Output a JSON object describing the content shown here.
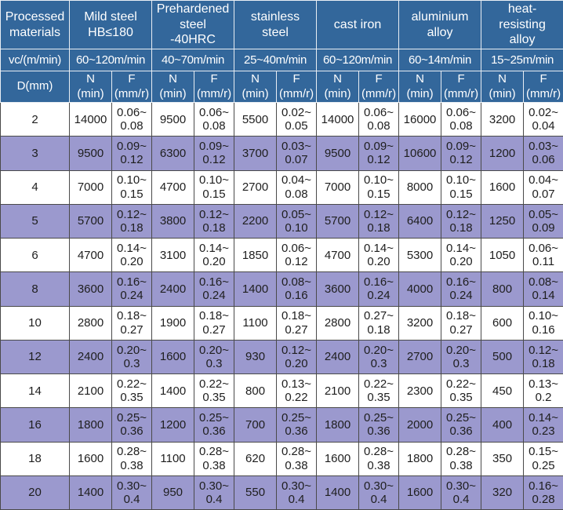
{
  "colors": {
    "header_bg": "#33679B",
    "header_text": "#FFFFFF",
    "row_bg": "#FFFFFF",
    "row_alt_bg": "#9B99CE",
    "data_text": "#1E1E1E",
    "data_border": "#4A4A4A",
    "header_border": "#E9EEF4"
  },
  "table": {
    "corner_label": "Processed\nmaterials",
    "vc_row_label": "vc/(m/min)",
    "d_row_label": "D(mm)",
    "n_header": "N\n(min)",
    "f_header": "F\n(mm/r)",
    "materials": [
      {
        "name": "Mild steel\nHB≤180",
        "vc": "60~120m/min"
      },
      {
        "name": "Prehardened\nsteel\n-40HRC",
        "vc": "40~70m/min"
      },
      {
        "name": "stainless\nsteel",
        "vc": "25~40m/min"
      },
      {
        "name": "cast iron",
        "vc": "60~120m/min"
      },
      {
        "name": "aluminium\nalloy",
        "vc": "60~14m/min"
      },
      {
        "name": "heat-\nresisting\nalloy",
        "vc": "15~25m/min"
      }
    ],
    "rows": [
      {
        "d": "2",
        "values": [
          "14000",
          "0.06~\n0.08",
          "9500",
          "0.06~\n0.08",
          "5500",
          "0.02~\n0.05",
          "14000",
          "0.06~\n0.08",
          "16000",
          "0.06~\n0.08",
          "3200",
          "0.02~\n0.04"
        ]
      },
      {
        "d": "3",
        "values": [
          "9500",
          "0.09~\n0.12",
          "6300",
          "0.09~\n0.12",
          "3700",
          "0.03~\n0.07",
          "9500",
          "0.09~\n0.12",
          "10600",
          "0.09~\n0.12",
          "1200",
          "0.03~\n0.06"
        ]
      },
      {
        "d": "4",
        "values": [
          "7000",
          "0.10~\n0.15",
          "4700",
          "0.10~\n0.15",
          "2700",
          "0.04~\n0.08",
          "7000",
          "0.10~\n0.15",
          "8000",
          "0.10~\n0.15",
          "1600",
          "0.04~\n0.07"
        ]
      },
      {
        "d": "5",
        "values": [
          "5700",
          "0.12~\n0.18",
          "3800",
          "0.12~\n0.18",
          "2200",
          "0.05~\n0.10",
          "5700",
          "0.12~\n0.18",
          "6400",
          "0.12~\n0.18",
          "1250",
          "0.05~\n0.09"
        ]
      },
      {
        "d": "6",
        "values": [
          "4700",
          "0.14~\n0.20",
          "3100",
          "0.14~\n0.20",
          "1850",
          "0.06~\n0.12",
          "4700",
          "0.14~\n0.20",
          "5300",
          "0.14~\n0.20",
          "1050",
          "0.06~\n0.11"
        ]
      },
      {
        "d": "8",
        "values": [
          "3600",
          "0.16~\n0.24",
          "2400",
          "0.16~\n0.24",
          "1400",
          "0.08~\n0.16",
          "3600",
          "0.16~\n0.24",
          "4000",
          "0.16~\n0.24",
          "800",
          "0.08~\n0.14"
        ]
      },
      {
        "d": "10",
        "values": [
          "2800",
          "0.18~\n0.27",
          "1900",
          "0.18~\n0.27",
          "1100",
          "0.18~\n0.27",
          "2800",
          "0.27~\n0.18",
          "3200",
          "0.18~\n0.27",
          "600",
          "0.10~\n0.16"
        ]
      },
      {
        "d": "12",
        "values": [
          "2400",
          "0.20~\n0.3",
          "1600",
          "0.20~\n0.3",
          "930",
          "0.12~\n0.20",
          "2400",
          "0.20~\n0.3",
          "2700",
          "0.20~\n0.3",
          "500",
          "0.12~\n0.18"
        ]
      },
      {
        "d": "14",
        "values": [
          "2100",
          "0.22~\n0.35",
          "1400",
          "0.22~\n0.35",
          "800",
          "0.13~\n0.22",
          "2100",
          "0.22~\n0.35",
          "2300",
          "0.22~\n0.35",
          "450",
          "0.13~\n0.2"
        ]
      },
      {
        "d": "16",
        "values": [
          "1800",
          "0.25~\n0.36",
          "1200",
          "0.25~\n0.36",
          "700",
          "0.25~\n0.36",
          "1800",
          "0.25~\n0.36",
          "2000",
          "0.25~\n0.36",
          "400",
          "0.14~\n0.23"
        ]
      },
      {
        "d": "18",
        "values": [
          "1600",
          "0.28~\n0.38",
          "1100",
          "0.28~\n0.38",
          "620",
          "0.28~\n0.38",
          "1600",
          "0.28~\n0.38",
          "1800",
          "0.28~\n0.38",
          "350",
          "0.15~\n0.25"
        ]
      },
      {
        "d": "20",
        "values": [
          "1400",
          "0.30~\n0.4",
          "950",
          "0.30~\n0.4",
          "550",
          "0.30~\n0.4",
          "1400",
          "0.30~\n0.4",
          "1600",
          "0.30~\n0.4",
          "320",
          "0.16~\n0.28"
        ]
      }
    ]
  }
}
